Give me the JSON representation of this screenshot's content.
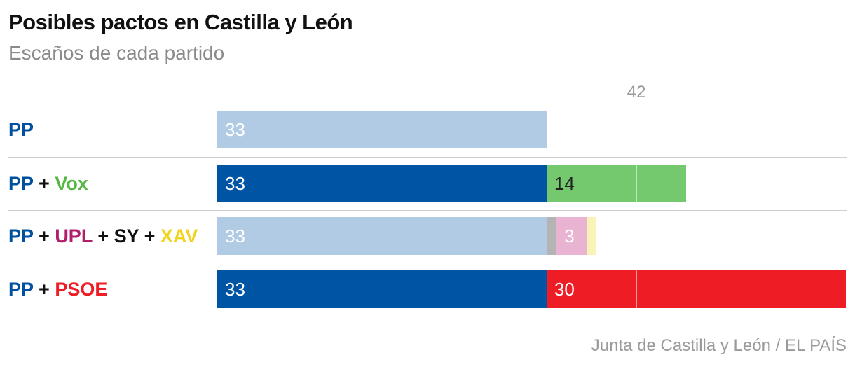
{
  "header": {
    "title": "Posibles pactos en Castilla y León",
    "subtitle": "Escaños de cada partido"
  },
  "footer": {
    "source": "Junta de Castilla y León / EL PAÍS"
  },
  "colors": {
    "pp_text": "#0050a0",
    "pp_bar": "#0054a4",
    "pp_bar_light": "#b0cbe3",
    "vox": "#74c96f",
    "vox_text": "#54b842",
    "upl": "#b01e6c",
    "upl_bar": "#e8b4d2",
    "sy": "#111111",
    "sy_bar": "#b4b4b4",
    "xav": "#f2d320",
    "xav_bar": "#faf3b8",
    "psoe": "#ee1c25",
    "plus": "#111111"
  },
  "chart_data": {
    "type": "bar",
    "orientation": "horizontal",
    "stacked": true,
    "title": "Posibles pactos en Castilla y León",
    "subtitle": "Escaños de cada partido",
    "majority_threshold": 42,
    "majority_label": "42",
    "xlim": [
      0,
      70
    ],
    "categories": [
      "PP",
      "PP + Vox",
      "PP + UPL + SY + XAV",
      "PP + PSOE"
    ],
    "rows": [
      {
        "label_parts": [
          {
            "text": "PP",
            "party": "pp"
          }
        ],
        "segments": [
          {
            "party": "PP",
            "value": 33,
            "label": "33",
            "color": "#b0cbe3",
            "label_color": "#ffffff"
          }
        ]
      },
      {
        "label_parts": [
          {
            "text": "PP",
            "party": "pp"
          },
          {
            "text": " + ",
            "party": "plus"
          },
          {
            "text": "Vox",
            "party": "vox"
          }
        ],
        "segments": [
          {
            "party": "PP",
            "value": 33,
            "label": "33",
            "color": "#0054a4",
            "label_color": "#ffffff"
          },
          {
            "party": "Vox",
            "value": 14,
            "label": "14",
            "color": "#74c96f",
            "label_color": "#222222"
          }
        ]
      },
      {
        "label_parts": [
          {
            "text": "PP",
            "party": "pp"
          },
          {
            "text": " + ",
            "party": "plus"
          },
          {
            "text": "UPL",
            "party": "upl"
          },
          {
            "text": " + ",
            "party": "plus"
          },
          {
            "text": "SY",
            "party": "sy"
          },
          {
            "text": " + ",
            "party": "plus"
          },
          {
            "text": "XAV",
            "party": "xav"
          }
        ],
        "segments": [
          {
            "party": "PP",
            "value": 33,
            "label": "33",
            "color": "#b0cbe3",
            "label_color": "#ffffff"
          },
          {
            "party": "SY",
            "value": 1,
            "label": "",
            "color": "#b4b4b4",
            "label_color": "#ffffff"
          },
          {
            "party": "UPL",
            "value": 3,
            "label": "3",
            "color": "#e8b4d2",
            "label_color": "#ffffff"
          },
          {
            "party": "XAV",
            "value": 1,
            "label": "",
            "color": "#faf3b8",
            "label_color": "#ffffff"
          }
        ]
      },
      {
        "label_parts": [
          {
            "text": "PP",
            "party": "pp"
          },
          {
            "text": " + ",
            "party": "plus"
          },
          {
            "text": "PSOE",
            "party": "psoe"
          }
        ],
        "segments": [
          {
            "party": "PP",
            "value": 33,
            "label": "33",
            "color": "#0054a4",
            "label_color": "#ffffff"
          },
          {
            "party": "PSOE",
            "value": 30,
            "label": "30",
            "color": "#ee1c25",
            "label_color": "#ffffff"
          }
        ]
      }
    ]
  }
}
